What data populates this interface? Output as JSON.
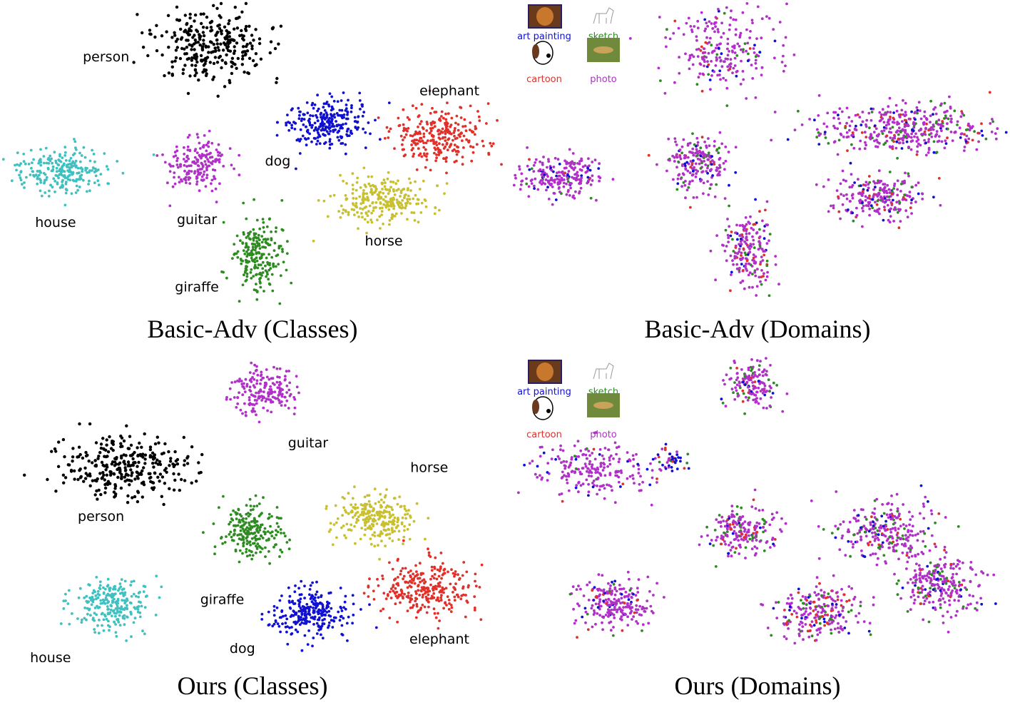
{
  "legend_items": [
    {
      "key": "art",
      "label": "art painting",
      "color": "#1010d0"
    },
    {
      "key": "sketch",
      "label": "sketch",
      "color": "#2e8b22"
    },
    {
      "key": "cartoon",
      "label": "cartoon",
      "color": "#e0302a"
    },
    {
      "key": "photo",
      "label": "photo",
      "color": "#b030c8"
    }
  ],
  "class_colors": {
    "person": "#000000",
    "guitar": "#b030c8",
    "house": "#40c0c0",
    "dog": "#1010d0",
    "elephant": "#e0302a",
    "horse": "#c8c030",
    "giraffe": "#2e8b22"
  },
  "chart_data": [
    {
      "type": "scatter",
      "title": "Basic-Adv (Classes)",
      "clusters": [
        {
          "label": "person",
          "center": [
            0.42,
            0.15
          ],
          "spread": [
            0.11,
            0.12
          ],
          "count": 300
        },
        {
          "label": "guitar",
          "center": [
            0.39,
            0.54
          ],
          "spread": [
            0.06,
            0.09
          ],
          "count": 180
        },
        {
          "label": "house",
          "center": [
            0.12,
            0.56
          ],
          "spread": [
            0.08,
            0.07
          ],
          "count": 250
        },
        {
          "label": "dog",
          "center": [
            0.65,
            0.4
          ],
          "spread": [
            0.08,
            0.08
          ],
          "count": 260
        },
        {
          "label": "elephant",
          "center": [
            0.87,
            0.44
          ],
          "spread": [
            0.09,
            0.09
          ],
          "count": 270
        },
        {
          "label": "horse",
          "center": [
            0.76,
            0.65
          ],
          "spread": [
            0.09,
            0.08
          ],
          "count": 260
        },
        {
          "label": "giraffe",
          "center": [
            0.51,
            0.83
          ],
          "spread": [
            0.05,
            0.12
          ],
          "count": 220
        }
      ]
    },
    {
      "type": "scatter",
      "title": "Basic-Adv (Domains)",
      "legend": [
        "art painting",
        "sketch",
        "cartoon",
        "photo"
      ],
      "clusters": [
        {
          "center": [
            0.43,
            0.16
          ],
          "spread": [
            0.1,
            0.14
          ],
          "mix": {
            "photo": 0.85,
            "art": 0.06,
            "cartoon": 0.05,
            "sketch": 0.04
          },
          "count": 240
        },
        {
          "center": [
            0.11,
            0.57
          ],
          "spread": [
            0.08,
            0.07
          ],
          "mix": {
            "photo": 0.88,
            "art": 0.06,
            "cartoon": 0.03,
            "sketch": 0.03
          },
          "count": 230
        },
        {
          "center": [
            0.38,
            0.53
          ],
          "spread": [
            0.06,
            0.09
          ],
          "mix": {
            "photo": 0.75,
            "sketch": 0.13,
            "art": 0.08,
            "cartoon": 0.04
          },
          "count": 200
        },
        {
          "center": [
            0.79,
            0.42
          ],
          "spread": [
            0.18,
            0.08
          ],
          "mix": {
            "photo": 0.72,
            "sketch": 0.14,
            "art": 0.08,
            "cartoon": 0.06
          },
          "count": 420
        },
        {
          "center": [
            0.74,
            0.64
          ],
          "spread": [
            0.09,
            0.08
          ],
          "mix": {
            "photo": 0.78,
            "sketch": 0.1,
            "cartoon": 0.07,
            "art": 0.05
          },
          "count": 230
        },
        {
          "center": [
            0.48,
            0.82
          ],
          "spread": [
            0.05,
            0.12
          ],
          "mix": {
            "photo": 0.68,
            "sketch": 0.12,
            "cartoon": 0.12,
            "art": 0.08
          },
          "count": 200
        }
      ]
    },
    {
      "type": "scatter",
      "title": "Ours (Classes)",
      "clusters": [
        {
          "label": "guitar",
          "center": [
            0.52,
            0.12
          ],
          "spread": [
            0.06,
            0.08
          ],
          "count": 190
        },
        {
          "label": "person",
          "center": [
            0.25,
            0.37
          ],
          "spread": [
            0.13,
            0.1
          ],
          "count": 300
        },
        {
          "label": "giraffe",
          "center": [
            0.5,
            0.57
          ],
          "spread": [
            0.06,
            0.09
          ],
          "count": 220
        },
        {
          "label": "house",
          "center": [
            0.22,
            0.81
          ],
          "spread": [
            0.07,
            0.08
          ],
          "count": 250
        },
        {
          "label": "horse",
          "center": [
            0.74,
            0.53
          ],
          "spread": [
            0.08,
            0.08
          ],
          "count": 260
        },
        {
          "label": "dog",
          "center": [
            0.61,
            0.84
          ],
          "spread": [
            0.08,
            0.08
          ],
          "count": 270
        },
        {
          "label": "elephant",
          "center": [
            0.84,
            0.76
          ],
          "spread": [
            0.09,
            0.09
          ],
          "count": 280
        }
      ]
    },
    {
      "type": "scatter",
      "title": "Ours (Domains)",
      "legend": [
        "art painting",
        "sketch",
        "cartoon",
        "photo"
      ],
      "clusters": [
        {
          "center": [
            0.49,
            0.09
          ],
          "spread": [
            0.05,
            0.08
          ],
          "mix": {
            "photo": 0.72,
            "sketch": 0.14,
            "cartoon": 0.08,
            "art": 0.06
          },
          "count": 160
        },
        {
          "center": [
            0.18,
            0.37
          ],
          "spread": [
            0.12,
            0.09
          ],
          "mix": {
            "photo": 0.9,
            "art": 0.06,
            "sketch": 0.02,
            "cartoon": 0.02
          },
          "count": 220
        },
        {
          "center": [
            0.33,
            0.34
          ],
          "spread": [
            0.03,
            0.04
          ],
          "mix": {
            "art": 0.4,
            "cartoon": 0.3,
            "sketch": 0.15,
            "photo": 0.15
          },
          "count": 40
        },
        {
          "center": [
            0.47,
            0.57
          ],
          "spread": [
            0.07,
            0.08
          ],
          "mix": {
            "photo": 0.72,
            "sketch": 0.14,
            "cartoon": 0.08,
            "art": 0.06
          },
          "count": 200
        },
        {
          "center": [
            0.22,
            0.81
          ],
          "spread": [
            0.07,
            0.08
          ],
          "mix": {
            "photo": 0.8,
            "art": 0.1,
            "cartoon": 0.06,
            "sketch": 0.04
          },
          "count": 230
        },
        {
          "center": [
            0.75,
            0.57
          ],
          "spread": [
            0.1,
            0.1
          ],
          "mix": {
            "photo": 0.72,
            "sketch": 0.14,
            "art": 0.08,
            "cartoon": 0.06
          },
          "count": 260
        },
        {
          "center": [
            0.62,
            0.84
          ],
          "spread": [
            0.08,
            0.08
          ],
          "mix": {
            "photo": 0.7,
            "sketch": 0.12,
            "cartoon": 0.12,
            "art": 0.06
          },
          "count": 240
        },
        {
          "center": [
            0.86,
            0.75
          ],
          "spread": [
            0.08,
            0.1
          ],
          "mix": {
            "photo": 0.74,
            "sketch": 0.12,
            "cartoon": 0.08,
            "art": 0.06
          },
          "count": 260
        }
      ]
    }
  ]
}
